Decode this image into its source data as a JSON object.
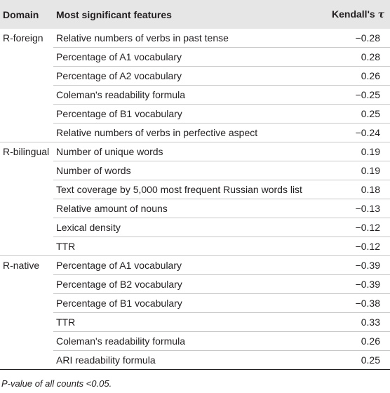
{
  "table": {
    "headers": {
      "domain": "Domain",
      "feature": "Most significant features",
      "tau_prefix": "Kendall's ",
      "tau_symbol": "τ"
    },
    "rows": [
      {
        "domain": "R-foreign",
        "feature": "Relative numbers of verbs in past tense",
        "tau": "−0.28"
      },
      {
        "domain": "",
        "feature": "Percentage of A1 vocabulary",
        "tau": "0.28"
      },
      {
        "domain": "",
        "feature": "Percentage of A2 vocabulary",
        "tau": "0.26"
      },
      {
        "domain": "",
        "feature": "Coleman's readability formula",
        "tau": "−0.25"
      },
      {
        "domain": "",
        "feature": "Percentage of B1 vocabulary",
        "tau": "0.25"
      },
      {
        "domain": "",
        "feature": "Relative numbers of verbs in perfective aspect",
        "tau": "−0.24"
      },
      {
        "domain": "R-bilingual",
        "feature": "Number of unique words",
        "tau": "0.19"
      },
      {
        "domain": "",
        "feature": "Number of words",
        "tau": "0.19"
      },
      {
        "domain": "",
        "feature": "Text coverage by 5,000 most frequent Russian words list",
        "tau": "0.18"
      },
      {
        "domain": "",
        "feature": "Relative amount of nouns",
        "tau": "−0.13"
      },
      {
        "domain": "",
        "feature": "Lexical density",
        "tau": "−0.12"
      },
      {
        "domain": "",
        "feature": "TTR",
        "tau": "−0.12"
      },
      {
        "domain": "R-native",
        "feature": "Percentage of A1 vocabulary",
        "tau": "−0.39"
      },
      {
        "domain": "",
        "feature": "Percentage of B2 vocabulary",
        "tau": "−0.39"
      },
      {
        "domain": "",
        "feature": "Percentage of B1 vocabulary",
        "tau": "−0.38"
      },
      {
        "domain": "",
        "feature": "TTR",
        "tau": "0.33"
      },
      {
        "domain": "",
        "feature": "Coleman's readability formula",
        "tau": "0.26"
      },
      {
        "domain": "",
        "feature": "ARI readability formula",
        "tau": "0.25"
      }
    ]
  },
  "footnote": "P-value of all counts <0.05."
}
